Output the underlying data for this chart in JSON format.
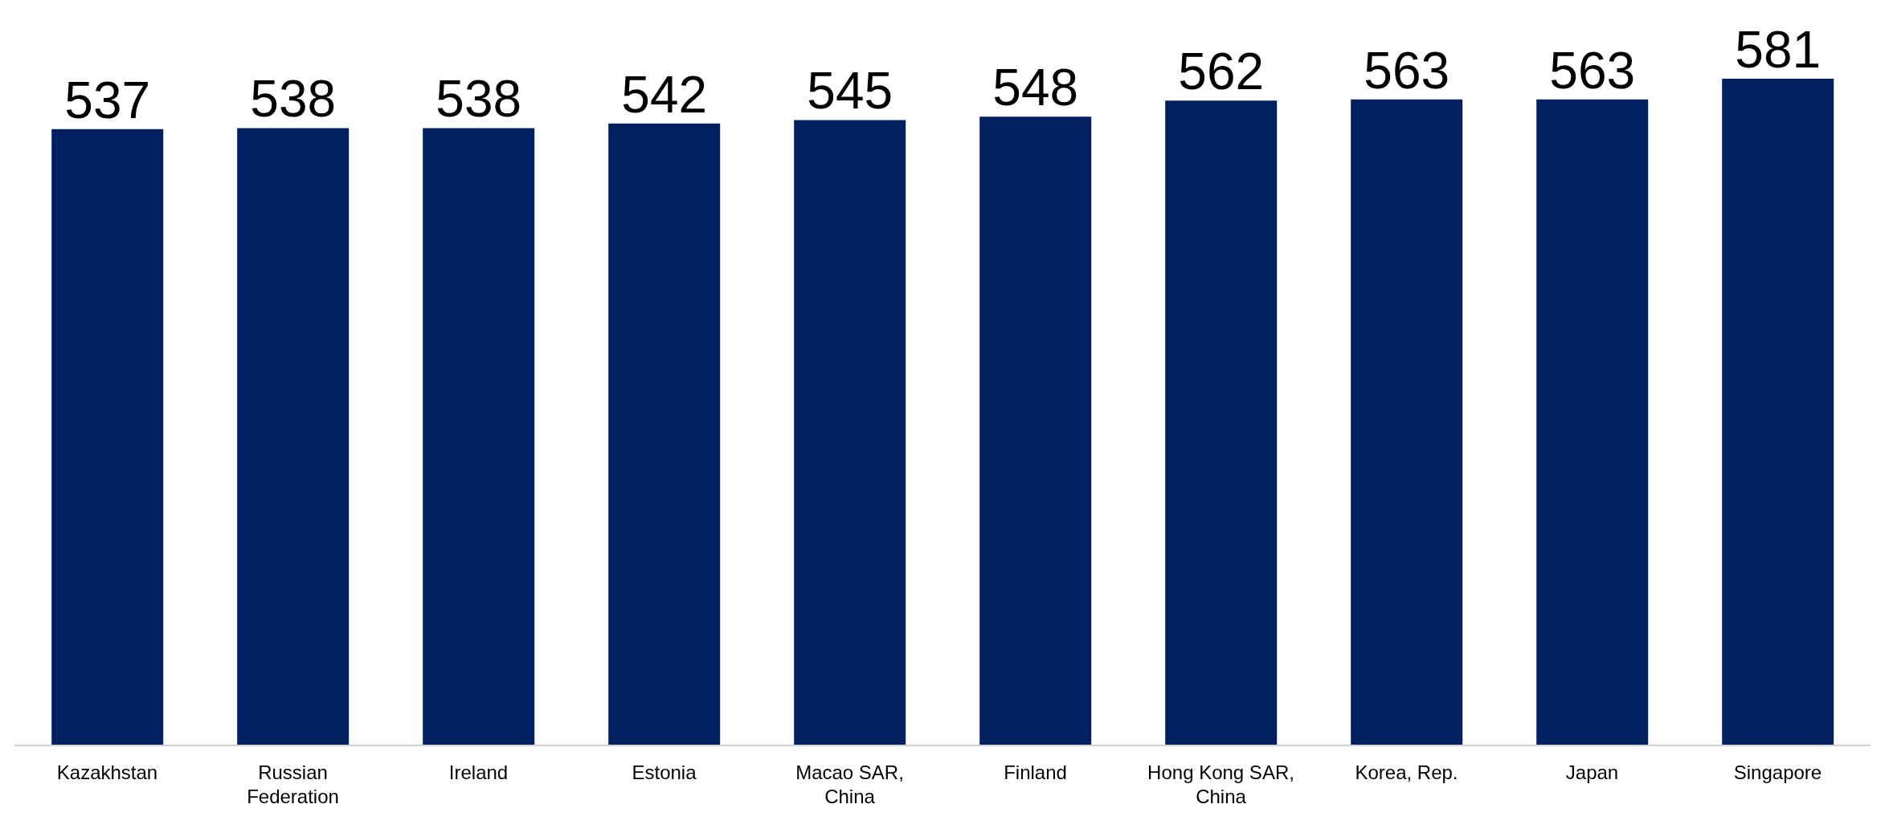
{
  "chart_data": {
    "type": "bar",
    "categories": [
      "Kazakhstan",
      "Russian Federation",
      "Ireland",
      "Estonia",
      "Macao SAR, China",
      "Finland",
      "Hong Kong SAR, China",
      "Korea, Rep.",
      "Japan",
      "Singapore"
    ],
    "values": [
      537,
      538,
      538,
      542,
      545,
      548,
      562,
      563,
      563,
      581
    ],
    "color": "#002060",
    "data_labels": true,
    "tick_labels": "x",
    "grid": false,
    "legend": false
  }
}
